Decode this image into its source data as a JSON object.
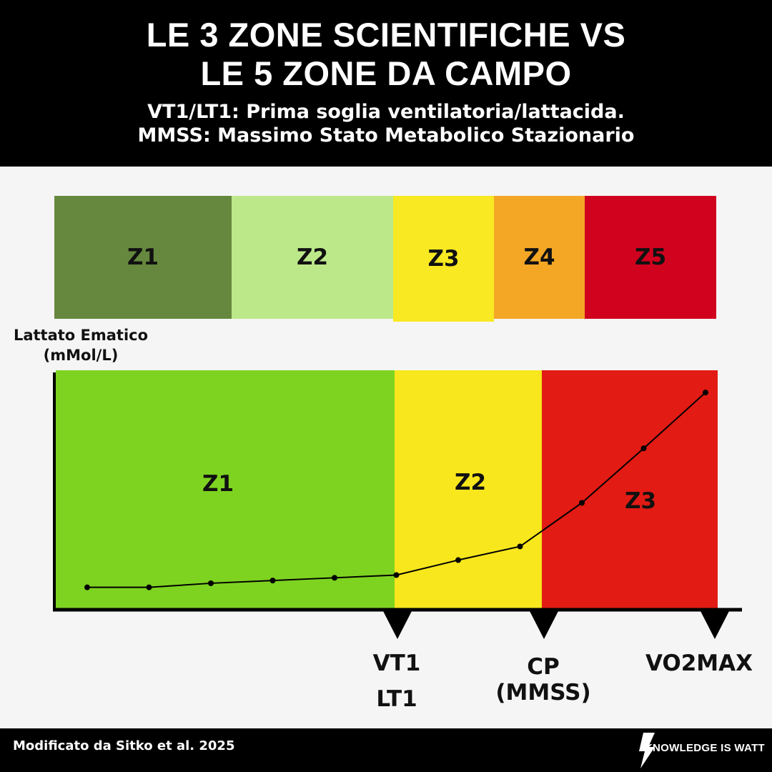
{
  "header": {
    "title_line1": "LE 3 ZONE SCIENTIFICHE  VS",
    "title_line2": "LE 5 ZONE DA CAMPO",
    "subtitle_line1": "VT1/LT1: Prima soglia ventilatoria/lattacida.",
    "subtitle_line2": "MMSS: Massimo Stato Metabolico Stazionario"
  },
  "field_zones": [
    {
      "label": "Z1",
      "color": "#66883e"
    },
    {
      "label": "Z2",
      "color": "#bce88a"
    },
    {
      "label": "Z3",
      "color": "#f8e922"
    },
    {
      "label": "Z4",
      "color": "#f4a725"
    },
    {
      "label": "Z5",
      "color": "#d0021e"
    }
  ],
  "chart_data": {
    "type": "line",
    "ylabel_line1": "Lattato Ematico",
    "ylabel_line2": "(mMol/L)",
    "grid": false,
    "zones": [
      {
        "label": "Z1",
        "color": "#7ed321"
      },
      {
        "label": "Z2",
        "color": "#f8e71c"
      },
      {
        "label": "Z3",
        "color": "#e21b14"
      }
    ],
    "thresholds": [
      {
        "label": "VT1",
        "label2": "LT1"
      },
      {
        "label": "CP",
        "label2": "(MMSS)"
      },
      {
        "label": "VO2MAX",
        "label2": ""
      }
    ],
    "series": [
      {
        "values": [
          0.7,
          0.7,
          1.0,
          1.2,
          1.4,
          1.6,
          2.7,
          3.7,
          6.9,
          10.9,
          15.0
        ]
      }
    ]
  },
  "footer": {
    "source": "Modificato da Sitko et al. 2025",
    "brand": "KNOWLEDGE IS WATT"
  }
}
